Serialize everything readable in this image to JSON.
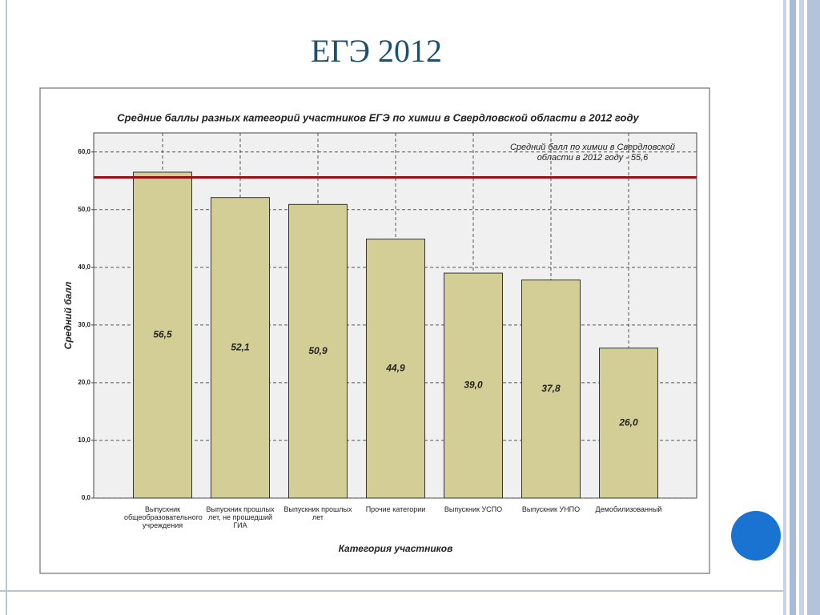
{
  "slide_title": "ЕГЭ 2012",
  "chart_data": {
    "type": "bar",
    "title": "Средние баллы разных категорий участников ЕГЭ по химии в Свердловской области в 2012 году",
    "x_label": "Категория участников",
    "y_label": "Средний балл",
    "categories": [
      "Выпускник общеобразовательного учреждения",
      "Выпускник прошлых лет, не прошедший ГИА",
      "Выпускник прошлых лет",
      "Прочие категории",
      "Выпускник УСПО",
      "Выпускник УНПО",
      "Демобилизованный"
    ],
    "values": [
      56.5,
      52.1,
      50.9,
      44.9,
      39.0,
      37.8,
      26.0
    ],
    "value_labels": [
      "56,5",
      "52,1",
      "50,9",
      "44,9",
      "39,0",
      "37,8",
      "26,0"
    ],
    "color": "#d3ce96",
    "ylim": [
      0,
      63.3
    ],
    "yticks": [
      {
        "value": 0,
        "label": "0,0"
      },
      {
        "value": 10,
        "label": "10,0"
      },
      {
        "value": 20,
        "label": "20,0"
      },
      {
        "value": 30,
        "label": "30,0"
      },
      {
        "value": 40,
        "label": "40,0"
      },
      {
        "value": 50,
        "label": "50,0"
      },
      {
        "value": 60,
        "label": "60,0"
      }
    ],
    "grid": true,
    "reference_line": {
      "value": 55.6,
      "color": "#9b0f14",
      "label": "Средний балл по химии в Свердловской области в 2012 году - 55,6"
    }
  }
}
